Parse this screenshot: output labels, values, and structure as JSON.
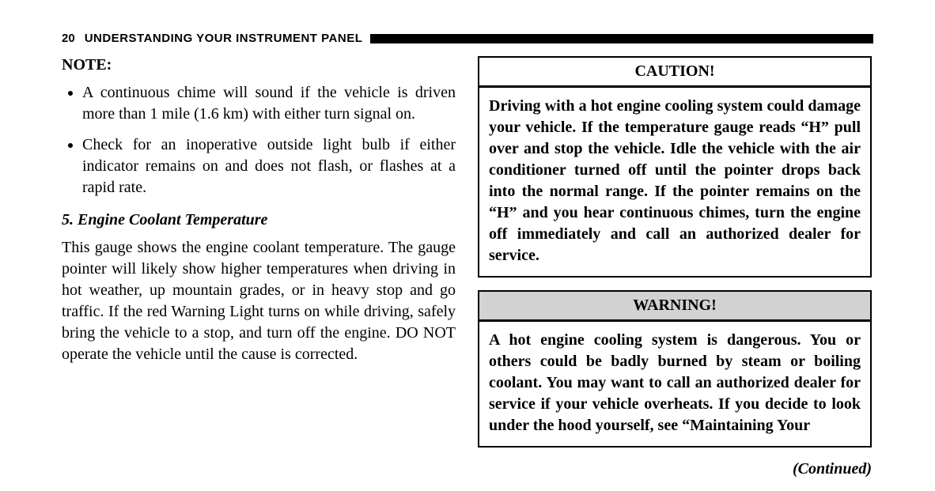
{
  "header": {
    "page_number": "20",
    "title": "UNDERSTANDING YOUR INSTRUMENT PANEL",
    "bar_color": "#000000"
  },
  "left": {
    "note_label": "NOTE:",
    "bullets": [
      "A continuous chime will sound if the vehicle is driven more than 1 mile (1.6 km) with either turn signal on.",
      "Check for an inoperative outside light bulb if either indicator remains on and does not flash, or flashes at a rapid rate."
    ],
    "section_heading": "5.  Engine Coolant Temperature",
    "body": "This gauge shows the engine coolant temperature. The gauge pointer will likely show higher temperatures when driving in hot weather, up mountain grades, or in heavy stop and go traffic. If the red Warning Light turns on while driving, safely bring the vehicle to a stop, and turn off the engine. DO NOT operate the vehicle until the cause is corrected."
  },
  "right": {
    "caution": {
      "title": "CAUTION!",
      "title_bg": "#ffffff",
      "body": "Driving with a hot engine cooling system could damage your vehicle. If the temperature gauge reads “H” pull over and stop the vehicle. Idle the vehicle with the air conditioner turned off until the pointer drops back into the normal range. If the pointer remains on the “H” and you hear continuous chimes, turn the engine off immediately and call an authorized dealer for service."
    },
    "warning": {
      "title": "WARNING!",
      "title_bg": "#d2d2d2",
      "body": "A hot engine cooling system is dangerous. You or others could be badly burned by steam or boiling coolant. You may want to call an authorized dealer for service if your vehicle overheats. If you decide to look under the hood yourself, see “Maintaining Your"
    },
    "continued": "(Continued)"
  },
  "style": {
    "font_family": "Palatino Linotype",
    "body_fontsize_pt": 15,
    "header_font_family": "Arial",
    "header_fontsize_pt": 11,
    "text_color": "#000000",
    "background_color": "#ffffff",
    "box_border_color": "#000000",
    "warning_title_bg": "#d2d2d2",
    "caution_title_bg": "#ffffff"
  }
}
